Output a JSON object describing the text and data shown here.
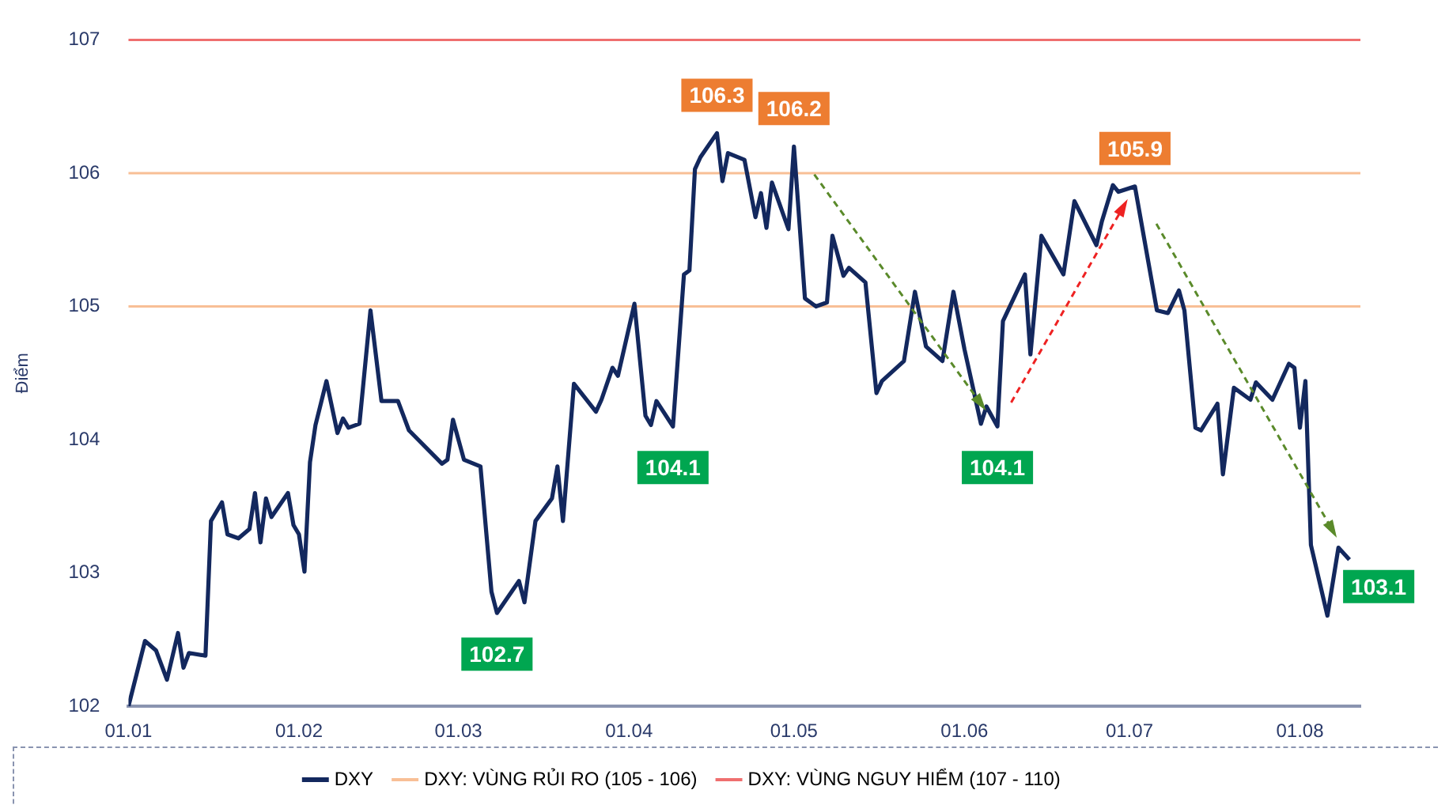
{
  "chart_data": {
    "type": "line",
    "ylabel": "Điểm",
    "x": [
      "--01-01",
      "--01-04",
      "--01-06",
      "--01-08",
      "--01-10",
      "--01-11",
      "--01-12",
      "--01-15",
      "--01-16",
      "--01-18",
      "--01-19",
      "--01-21",
      "--01-23",
      "--01-24",
      "--01-25",
      "--01-26",
      "--01-27",
      "--01-30",
      "--01-31",
      "--02-01",
      "--02-02",
      "--02-03",
      "--02-04",
      "--02-06",
      "--02-08",
      "--02-09",
      "--02-10",
      "--02-12",
      "--02-14",
      "--02-16",
      "--02-19",
      "--02-21",
      "--02-27",
      "--02-28",
      "--02-29",
      "--03-02",
      "--03-05",
      "--03-07",
      "--03-08",
      "--03-12",
      "--03-13",
      "--03-15",
      "--03-18",
      "--03-19",
      "--03-20",
      "--03-22",
      "--03-26",
      "--03-27",
      "--03-29",
      "--03-30",
      "--04-02",
      "--04-04",
      "--04-05",
      "--04-06",
      "--04-09",
      "--04-11",
      "--04-12",
      "--04-13",
      "--04-14",
      "--04-17",
      "--04-18",
      "--04-19",
      "--04-22",
      "--04-24",
      "--04-25",
      "--04-26",
      "--04-27",
      "--04-30",
      "--05-01",
      "--05-03",
      "--05-05",
      "--05-07",
      "--05-08",
      "--05-10",
      "--05-11",
      "--05-14",
      "--05-16",
      "--05-17",
      "--05-21",
      "--05-23",
      "--05-25",
      "--05-28",
      "--05-30",
      "--06-01",
      "--06-04",
      "--06-05",
      "--06-07",
      "--06-08",
      "--06-12",
      "--06-13",
      "--06-15",
      "--06-19",
      "--06-21",
      "--06-25",
      "--06-26",
      "--06-28",
      "--06-29",
      "--07-02",
      "--07-06",
      "--07-08",
      "--07-10",
      "--07-11",
      "--07-13",
      "--07-14",
      "--07-17",
      "--07-18",
      "--07-20",
      "--07-23",
      "--07-24",
      "--07-27",
      "--07-30",
      "--07-31",
      "--08-01",
      "--08-02",
      "--08-03",
      "--08-06",
      "--08-08",
      "--08-10"
    ],
    "series": [
      {
        "name": "DXY",
        "color": "#13285e",
        "values": [
          102.0,
          102.49,
          102.42,
          102.2,
          102.55,
          102.29,
          102.4,
          102.38,
          103.39,
          103.53,
          103.29,
          103.26,
          103.33,
          103.6,
          103.23,
          103.56,
          103.42,
          103.6,
          103.36,
          103.29,
          103.01,
          103.83,
          104.11,
          104.44,
          104.05,
          104.16,
          104.09,
          104.12,
          104.97,
          104.29,
          104.29,
          104.07,
          103.82,
          103.85,
          104.15,
          103.85,
          103.8,
          102.86,
          102.7,
          102.94,
          102.78,
          103.39,
          103.56,
          103.8,
          103.39,
          104.42,
          104.21,
          104.3,
          104.54,
          104.48,
          105.02,
          104.18,
          104.11,
          104.29,
          104.1,
          105.24,
          105.27,
          106.03,
          106.12,
          106.3,
          105.94,
          106.15,
          106.1,
          105.67,
          105.85,
          105.59,
          105.93,
          105.58,
          106.2,
          105.06,
          105.0,
          105.03,
          105.53,
          105.23,
          105.29,
          105.18,
          104.35,
          104.44,
          104.59,
          105.11,
          104.7,
          104.59,
          105.11,
          104.68,
          104.12,
          104.25,
          104.1,
          104.89,
          105.24,
          104.64,
          105.53,
          105.24,
          105.79,
          105.46,
          105.64,
          105.91,
          105.86,
          105.9,
          104.97,
          104.95,
          105.12,
          104.97,
          104.09,
          104.07,
          104.27,
          103.74,
          104.39,
          104.3,
          104.43,
          104.3,
          104.57,
          104.54,
          104.09,
          104.44,
          103.21,
          102.68,
          103.19,
          103.1
        ]
      }
    ],
    "xlim": [
      "--01-01",
      "--08-12"
    ],
    "xticks": [
      {
        "value": "--01-01",
        "label": "01.01"
      },
      {
        "value": "--02-01",
        "label": "01.02"
      },
      {
        "value": "--03-01",
        "label": "01.03"
      },
      {
        "value": "--04-01",
        "label": "01.04"
      },
      {
        "value": "--05-01",
        "label": "01.05"
      },
      {
        "value": "--06-01",
        "label": "01.06"
      },
      {
        "value": "--07-01",
        "label": "01.07"
      },
      {
        "value": "--08-01",
        "label": "01.08"
      }
    ],
    "ylim": [
      102,
      107
    ],
    "yticks": [
      102,
      103,
      104,
      105,
      106,
      107
    ],
    "ref_lines": [
      {
        "axis": "y",
        "value": 105,
        "label": "DXY: VÙNG RỦI RO (105 - 106)",
        "color": "#f8bf96"
      },
      {
        "axis": "y",
        "value": 106,
        "color": "#f8bf96"
      },
      {
        "axis": "y",
        "value": 107,
        "label": "DXY: VÙNG NGUY HIỂM (107 - 110)",
        "color": "#ef6f6f"
      }
    ],
    "annotations": [
      {
        "text": "102.7",
        "x": "--03-08",
        "y": 102.7
      },
      {
        "text": "104.1",
        "x": "--04-09",
        "y": 104.1
      },
      {
        "text": "106.3",
        "x": "--04-17",
        "y": 106.3
      },
      {
        "text": "106.2",
        "x": "--05-01",
        "y": 106.2
      },
      {
        "text": "104.1",
        "x": "--06-07",
        "y": 104.1
      },
      {
        "text": "105.9",
        "x": "--07-02",
        "y": 105.9
      },
      {
        "text": "103.1",
        "x": "--08-10",
        "y": 103.1
      }
    ],
    "grid": false,
    "legend": "bottom",
    "marker": "none",
    "line_style": "solid"
  }
}
